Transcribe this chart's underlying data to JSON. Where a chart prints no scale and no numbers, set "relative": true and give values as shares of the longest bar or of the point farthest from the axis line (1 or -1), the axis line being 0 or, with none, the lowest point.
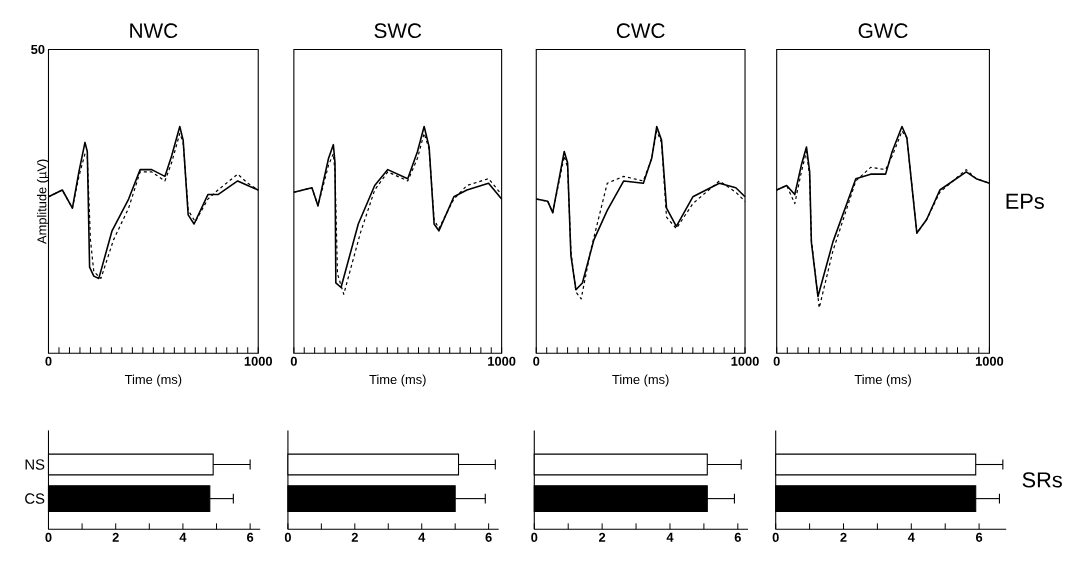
{
  "chart_data": [
    {
      "type": "line",
      "title": "NWC",
      "xlabel": "Time (ms)",
      "ylabel": "Amplitude (µV)",
      "relative": true,
      "annotations": [
        "50"
      ],
      "xlim": [
        0,
        1000
      ],
      "xticks": [
        0,
        {
          "value": 50,
          "label": null
        },
        {
          "value": 100,
          "label": null
        },
        {
          "value": 150,
          "label": null
        },
        {
          "value": 200,
          "label": null
        },
        {
          "value": 250,
          "label": null
        },
        {
          "value": 300,
          "label": null
        },
        {
          "value": 350,
          "label": null
        },
        {
          "value": 400,
          "label": null
        },
        {
          "value": 450,
          "label": null
        },
        {
          "value": 500,
          "label": null
        },
        {
          "value": 550,
          "label": null
        },
        {
          "value": 600,
          "label": null
        },
        {
          "value": 650,
          "label": null
        },
        {
          "value": 700,
          "label": null
        },
        {
          "value": 750,
          "label": null
        },
        {
          "value": 800,
          "label": null
        },
        {
          "value": 850,
          "label": null
        },
        {
          "value": 900,
          "label": null
        },
        {
          "value": 950,
          "label": null
        },
        1000
      ],
      "series": [
        {
          "color": "#000000",
          "line_style": "solid",
          "x": [
            0,
            66,
            114,
            145,
            174,
            185,
            196,
            216,
            240,
            303,
            382,
            437,
            492,
            555,
            587,
            626,
            642,
            666,
            694,
            760,
            808,
            902,
            950,
            1000
          ],
          "values": [
            0.69,
            0.72,
            0.64,
            0.8,
            0.93,
            0.89,
            0.38,
            0.34,
            0.33,
            0.54,
            0.68,
            0.81,
            0.81,
            0.78,
            0.87,
            1.0,
            0.94,
            0.61,
            0.57,
            0.7,
            0.7,
            0.76,
            0.74,
            0.72
          ]
        },
        {
          "color": "#000000",
          "line_style": "dashed",
          "x": [
            0,
            66,
            114,
            145,
            174,
            185,
            200,
            216,
            250,
            310,
            382,
            437,
            492,
            555,
            587,
            626,
            642,
            666,
            700,
            760,
            808,
            902,
            950,
            1000
          ],
          "values": [
            0.69,
            0.72,
            0.64,
            0.78,
            0.88,
            0.87,
            0.5,
            0.36,
            0.33,
            0.5,
            0.64,
            0.8,
            0.8,
            0.76,
            0.84,
            0.97,
            0.93,
            0.63,
            0.58,
            0.68,
            0.72,
            0.79,
            0.75,
            0.72
          ]
        }
      ]
    },
    {
      "type": "line",
      "title": "SWC",
      "xlabel": "Time (ms)",
      "relative": true,
      "xlim": [
        0,
        1000
      ],
      "xticks": [
        0,
        {
          "value": 50,
          "label": null
        },
        {
          "value": 100,
          "label": null
        },
        {
          "value": 150,
          "label": null
        },
        {
          "value": 200,
          "label": null
        },
        {
          "value": 250,
          "label": null
        },
        {
          "value": 300,
          "label": null
        },
        {
          "value": 350,
          "label": null
        },
        {
          "value": 400,
          "label": null
        },
        {
          "value": 450,
          "label": null
        },
        {
          "value": 500,
          "label": null
        },
        {
          "value": 550,
          "label": null
        },
        {
          "value": 600,
          "label": null
        },
        {
          "value": 650,
          "label": null
        },
        {
          "value": 700,
          "label": null
        },
        {
          "value": 750,
          "label": null
        },
        {
          "value": 800,
          "label": null
        },
        {
          "value": 850,
          "label": null
        },
        {
          "value": 900,
          "label": null
        },
        {
          "value": 950,
          "label": null
        },
        1000
      ],
      "series": [
        {
          "color": "#000000",
          "line_style": "solid",
          "x": [
            0,
            87,
            116,
            167,
            190,
            198,
            202,
            227,
            310,
            389,
            452,
            548,
            595,
            627,
            651,
            675,
            698,
            770,
            833,
            937,
            1000
          ],
          "values": [
            0.71,
            0.73,
            0.65,
            0.86,
            0.92,
            0.84,
            0.31,
            0.29,
            0.57,
            0.74,
            0.81,
            0.77,
            0.89,
            1.0,
            0.91,
            0.57,
            0.54,
            0.69,
            0.72,
            0.75,
            0.68
          ]
        },
        {
          "color": "#000000",
          "line_style": "dashed",
          "x": [
            0,
            87,
            116,
            167,
            190,
            198,
            210,
            240,
            320,
            389,
            452,
            548,
            595,
            627,
            651,
            675,
            698,
            770,
            833,
            937,
            1000
          ],
          "values": [
            0.71,
            0.73,
            0.65,
            0.83,
            0.88,
            0.8,
            0.35,
            0.26,
            0.53,
            0.72,
            0.8,
            0.76,
            0.86,
            0.97,
            0.9,
            0.59,
            0.55,
            0.68,
            0.74,
            0.77,
            0.7
          ]
        }
      ]
    },
    {
      "type": "line",
      "title": "CWC",
      "xlabel": "Time (ms)",
      "relative": true,
      "xlim": [
        0,
        1000
      ],
      "xticks": [
        0,
        {
          "value": 50,
          "label": null
        },
        {
          "value": 100,
          "label": null
        },
        {
          "value": 150,
          "label": null
        },
        {
          "value": 200,
          "label": null
        },
        {
          "value": 250,
          "label": null
        },
        {
          "value": 300,
          "label": null
        },
        {
          "value": 350,
          "label": null
        },
        {
          "value": 400,
          "label": null
        },
        {
          "value": 450,
          "label": null
        },
        {
          "value": 500,
          "label": null
        },
        {
          "value": 550,
          "label": null
        },
        {
          "value": 600,
          "label": null
        },
        {
          "value": 650,
          "label": null
        },
        {
          "value": 700,
          "label": null
        },
        {
          "value": 750,
          "label": null
        },
        {
          "value": 800,
          "label": null
        },
        {
          "value": 850,
          "label": null
        },
        {
          "value": 900,
          "label": null
        },
        {
          "value": 950,
          "label": null
        },
        1000
      ],
      "series": [
        {
          "color": "#000000",
          "line_style": "solid",
          "x": [
            0,
            55,
            79,
            134,
            150,
            166,
            190,
            221,
            276,
            340,
            419,
            513,
            553,
            577,
            600,
            624,
            671,
            750,
            877,
            956,
            1000
          ],
          "values": [
            0.68,
            0.67,
            0.62,
            0.89,
            0.84,
            0.43,
            0.28,
            0.31,
            0.5,
            0.63,
            0.76,
            0.75,
            0.86,
            1.0,
            0.94,
            0.64,
            0.56,
            0.69,
            0.75,
            0.73,
            0.69
          ]
        },
        {
          "color": "#000000",
          "line_style": "dashed",
          "x": [
            0,
            55,
            79,
            134,
            150,
            166,
            190,
            215,
            260,
            340,
            419,
            513,
            553,
            577,
            600,
            624,
            671,
            750,
            877,
            956,
            1000
          ],
          "values": [
            0.68,
            0.67,
            0.62,
            0.87,
            0.82,
            0.45,
            0.27,
            0.24,
            0.45,
            0.75,
            0.78,
            0.76,
            0.86,
            0.98,
            0.93,
            0.6,
            0.55,
            0.66,
            0.76,
            0.71,
            0.67
          ]
        }
      ]
    },
    {
      "type": "line",
      "title": "GWC",
      "xlabel": "Time (ms)",
      "relative": true,
      "annotations": [
        "EPs"
      ],
      "xlim": [
        0,
        1000
      ],
      "xticks": [
        0,
        {
          "value": 50,
          "label": null
        },
        {
          "value": 100,
          "label": null
        },
        {
          "value": 150,
          "label": null
        },
        {
          "value": 200,
          "label": null
        },
        {
          "value": 250,
          "label": null
        },
        {
          "value": 300,
          "label": null
        },
        {
          "value": 350,
          "label": null
        },
        {
          "value": 400,
          "label": null
        },
        {
          "value": 450,
          "label": null
        },
        {
          "value": 500,
          "label": null
        },
        {
          "value": 550,
          "label": null
        },
        {
          "value": 600,
          "label": null
        },
        {
          "value": 650,
          "label": null
        },
        {
          "value": 700,
          "label": null
        },
        {
          "value": 750,
          "label": null
        },
        {
          "value": 800,
          "label": null
        },
        {
          "value": 850,
          "label": null
        },
        {
          "value": 900,
          "label": null
        },
        {
          "value": 950,
          "label": null
        },
        1000
      ],
      "series": [
        {
          "color": "#000000",
          "line_style": "solid",
          "x": [
            0,
            47,
            85,
            116,
            140,
            155,
            163,
            194,
            264,
            372,
            442,
            512,
            543,
            589,
            612,
            659,
            705,
            767,
            891,
            938,
            1000
          ],
          "values": [
            0.72,
            0.74,
            0.7,
            0.83,
            0.91,
            0.8,
            0.49,
            0.25,
            0.49,
            0.77,
            0.79,
            0.79,
            0.89,
            1.0,
            0.95,
            0.53,
            0.59,
            0.72,
            0.8,
            0.77,
            0.75
          ]
        },
        {
          "color": "#000000",
          "line_style": "dashed",
          "x": [
            0,
            47,
            85,
            116,
            140,
            155,
            163,
            200,
            264,
            372,
            442,
            512,
            543,
            589,
            612,
            659,
            705,
            767,
            891,
            938,
            1000
          ],
          "values": [
            0.72,
            0.74,
            0.66,
            0.8,
            0.89,
            0.78,
            0.5,
            0.2,
            0.45,
            0.76,
            0.82,
            0.81,
            0.87,
            0.98,
            0.95,
            0.53,
            0.59,
            0.71,
            0.81,
            0.77,
            0.75
          ]
        }
      ]
    },
    {
      "type": "bar",
      "orientation": "horizontal",
      "categories": [
        "NS",
        "CS"
      ],
      "values": [
        4.9,
        4.8
      ],
      "colors": [
        "#ffffff",
        "#000000"
      ],
      "errors": [
        1.1,
        0.7
      ],
      "xlim": [
        0,
        6.3
      ],
      "xticks": [
        0,
        {
          "value": 1,
          "label": null
        },
        2,
        {
          "value": 3,
          "label": null
        },
        4,
        {
          "value": 5,
          "label": null
        },
        6
      ]
    },
    {
      "type": "bar",
      "orientation": "horizontal",
      "categories": [
        null,
        null
      ],
      "values": [
        5.1,
        5.0
      ],
      "colors": [
        "#ffffff",
        "#000000"
      ],
      "errors": [
        1.1,
        0.9
      ],
      "xlim": [
        0,
        6.3
      ],
      "xticks": [
        0,
        {
          "value": 1,
          "label": null
        },
        2,
        {
          "value": 3,
          "label": null
        },
        4,
        {
          "value": 5,
          "label": null
        },
        6
      ]
    },
    {
      "type": "bar",
      "orientation": "horizontal",
      "categories": [
        null,
        null
      ],
      "values": [
        5.1,
        5.1
      ],
      "colors": [
        "#ffffff",
        "#000000"
      ],
      "errors": [
        1.0,
        0.8
      ],
      "xlim": [
        0,
        6.3
      ],
      "xticks": [
        0,
        {
          "value": 1,
          "label": null
        },
        2,
        {
          "value": 3,
          "label": null
        },
        4,
        {
          "value": 5,
          "label": null
        },
        6
      ]
    },
    {
      "type": "bar",
      "orientation": "horizontal",
      "categories": [
        null,
        null
      ],
      "values": [
        5.9,
        5.9
      ],
      "colors": [
        "#ffffff",
        "#000000"
      ],
      "errors": [
        0.8,
        0.7
      ],
      "xlim": [
        0,
        6.8
      ],
      "xticks": [
        0,
        {
          "value": 1,
          "label": null
        },
        2,
        {
          "value": 3,
          "label": null
        },
        4,
        {
          "value": 5,
          "label": null
        },
        6
      ],
      "annotations": [
        "SRs"
      ]
    }
  ]
}
